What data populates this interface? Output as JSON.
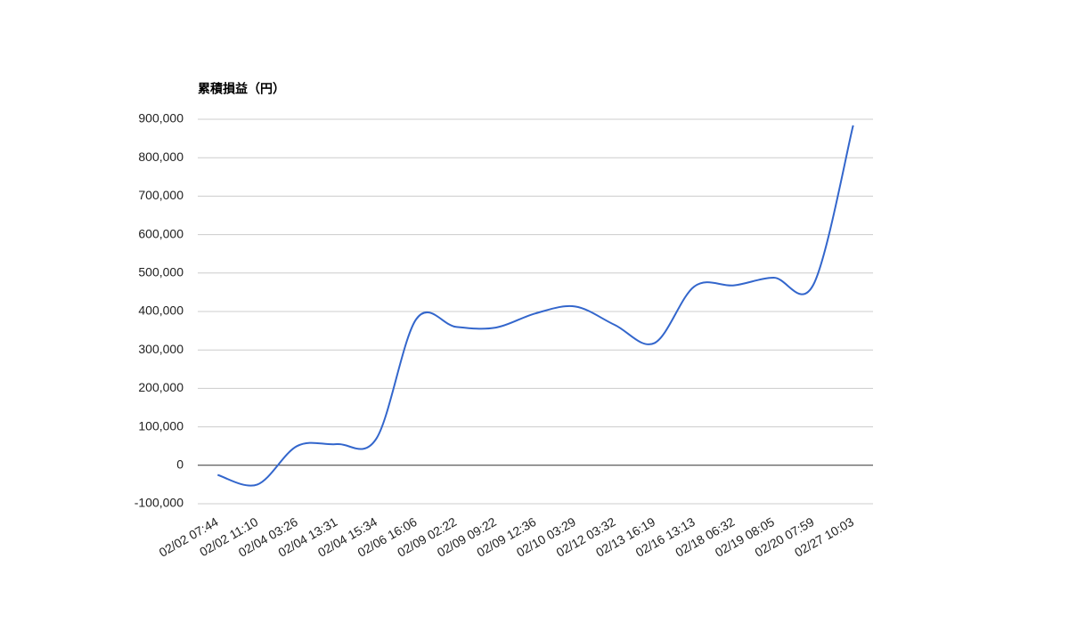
{
  "chart_data": {
    "type": "line",
    "title": "累積損益（円）",
    "categories": [
      "02/02 07:44",
      "02/02 11:10",
      "02/04 03:26",
      "02/04 13:31",
      "02/04 15:34",
      "02/06 16:06",
      "02/09 02:22",
      "02/09 09:22",
      "02/09 12:36",
      "02/10 03:29",
      "02/12 03:32",
      "02/13 16:19",
      "02/16 13:13",
      "02/18 06:32",
      "02/19 08:05",
      "02/20 07:59",
      "02/27 10:03"
    ],
    "series": [
      {
        "color": "#3366cc",
        "values": [
          -25000,
          -50000,
          50000,
          55000,
          70000,
          380000,
          360000,
          358000,
          395000,
          413000,
          365000,
          318000,
          465000,
          468000,
          488000,
          470000,
          884000
        ]
      }
    ],
    "ylim": [
      -100000,
      900000
    ],
    "yticks": [
      {
        "value": -100000,
        "label": "-100,000"
      },
      0,
      {
        "value": 100000,
        "label": "100,000"
      },
      {
        "value": 200000,
        "label": "200,000"
      },
      {
        "value": 300000,
        "label": "300,000"
      },
      {
        "value": 400000,
        "label": "400,000"
      },
      {
        "value": 500000,
        "label": "500,000"
      },
      {
        "value": 600000,
        "label": "600,000"
      },
      {
        "value": 700000,
        "label": "700,000"
      },
      {
        "value": 800000,
        "label": "800,000"
      },
      {
        "value": 900000,
        "label": "900,000"
      }
    ],
    "grid": true
  }
}
